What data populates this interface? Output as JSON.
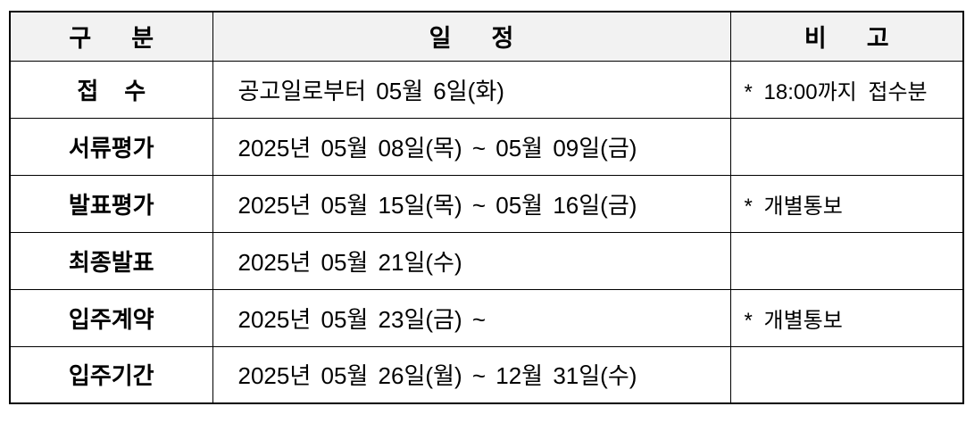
{
  "colors": {
    "header_background": "#f2f2f2",
    "border": "#000000",
    "text": "#000000",
    "page_background": "#ffffff"
  },
  "header": {
    "category": "구      분",
    "schedule": "일      정",
    "remark": "비      고"
  },
  "rows": [
    {
      "category": "접    수",
      "schedule": "공고일로부터 05월 6일(화)",
      "remark": "* 18:00까지 접수분"
    },
    {
      "category": "서류평가",
      "schedule": "2025년 05월 08일(목) ~ 05월 09일(금)",
      "remark": ""
    },
    {
      "category": "발표평가",
      "schedule": "2025년 05월 15일(목) ~ 05월 16일(금)",
      "remark": "* 개별통보"
    },
    {
      "category": "최종발표",
      "schedule": "2025년 05월 21일(수)",
      "remark": ""
    },
    {
      "category": "입주계약",
      "schedule": "2025년 05월 23일(금) ~",
      "remark": "* 개별통보"
    },
    {
      "category": "입주기간",
      "schedule": "2025년 05월 26일(월) ~ 12월 31일(수)",
      "remark": ""
    }
  ]
}
